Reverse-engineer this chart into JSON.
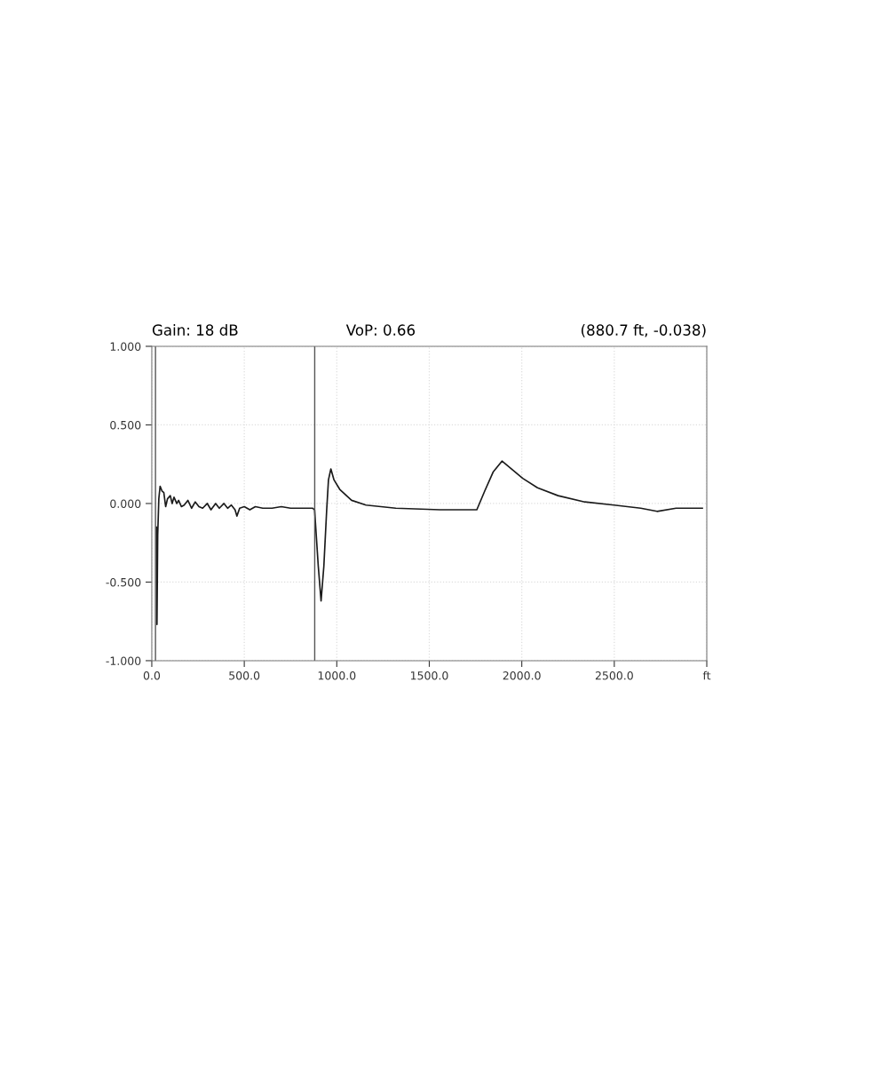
{
  "chart_data": {
    "type": "line",
    "annotations": [
      "Gain: 18 dB",
      "VoP: 0.66",
      "(880.7 ft, -0.038)"
    ],
    "series": [
      {
        "color": "#1a1a1a",
        "x": [
          25,
          28,
          32,
          38,
          45,
          55,
          65,
          75,
          85,
          100,
          110,
          120,
          135,
          145,
          160,
          175,
          195,
          215,
          235,
          255,
          275,
          300,
          320,
          345,
          365,
          390,
          410,
          430,
          450,
          460,
          475,
          500,
          530,
          560,
          600,
          650,
          700,
          750,
          800,
          870,
          880,
          900,
          915,
          930,
          945,
          955,
          968,
          985,
          1016,
          1080,
          1158,
          1319,
          1558,
          1757,
          1800,
          1845,
          1893,
          2005,
          2085,
          2196,
          2340,
          2499,
          2643,
          2731,
          2834,
          2976
        ],
        "values": [
          -0.15,
          -0.77,
          -0.2,
          0.03,
          0.11,
          0.08,
          0.07,
          -0.02,
          0.03,
          0.05,
          0.0,
          0.04,
          0.0,
          0.02,
          -0.02,
          -0.01,
          0.02,
          -0.03,
          0.01,
          -0.02,
          -0.03,
          0.0,
          -0.04,
          0.0,
          -0.03,
          0.0,
          -0.03,
          -0.01,
          -0.04,
          -0.08,
          -0.03,
          -0.02,
          -0.04,
          -0.02,
          -0.03,
          -0.03,
          -0.02,
          -0.03,
          -0.03,
          -0.03,
          -0.04,
          -0.4,
          -0.62,
          -0.4,
          -0.05,
          0.15,
          0.22,
          0.15,
          0.09,
          0.02,
          -0.01,
          -0.03,
          -0.04,
          -0.04,
          0.08,
          0.2,
          0.27,
          0.16,
          0.1,
          0.05,
          0.01,
          -0.01,
          -0.03,
          -0.05,
          -0.03,
          -0.03
        ]
      }
    ],
    "xlim": [
      0,
      3000
    ],
    "xticks": [
      {
        "value": 0,
        "label": "0.0"
      },
      {
        "value": 500,
        "label": "500.0"
      },
      {
        "value": 1000,
        "label": "1000.0"
      },
      {
        "value": 1500,
        "label": "1500.0"
      },
      {
        "value": 2000,
        "label": "2000.0"
      },
      {
        "value": 2500,
        "label": "2500.0"
      },
      {
        "value": 3000,
        "label": "ft"
      }
    ],
    "ylim": [
      -1,
      1
    ],
    "yticks": [
      {
        "value": -1,
        "label": "-1.000"
      },
      {
        "value": -0.5,
        "label": "-0.500"
      },
      {
        "value": 0,
        "label": "0.000"
      },
      {
        "value": 0.5,
        "label": "0.500"
      },
      {
        "value": 1,
        "label": "1.000"
      }
    ],
    "ref_lines": [
      {
        "axis": "x",
        "value": 20,
        "color": "#555555"
      },
      {
        "axis": "x",
        "value": 880.7,
        "color": "#555555"
      }
    ],
    "grid": true,
    "legend": false,
    "marker": "none",
    "line_style": "solid"
  }
}
